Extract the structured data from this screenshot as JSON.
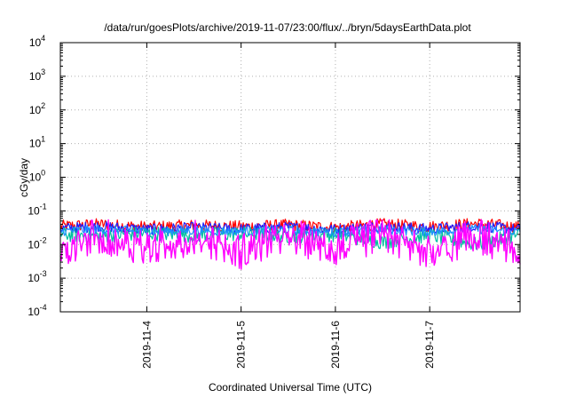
{
  "chart_data": {
    "type": "line",
    "title": "/data/run/goesPlots/archive/2019-11-07/23:00/flux/../bryn/5daysEarthData.plot",
    "xlabel": "Coordinated Universal Time (UTC)",
    "ylabel": "cGy/day",
    "y_scale": "log",
    "ylim": [
      0.0001,
      10000
    ],
    "xlim": [
      "2019-11-03 02:00",
      "2019-11-07 23:00"
    ],
    "x_ticks": [
      "2019-11-4",
      "2019-11-5",
      "2019-11-6",
      "2019-11-7"
    ],
    "y_ticks": [
      {
        "base": "10",
        "exp": "-4"
      },
      {
        "base": "10",
        "exp": "-3"
      },
      {
        "base": "10",
        "exp": "-2"
      },
      {
        "base": "10",
        "exp": "-1"
      },
      {
        "base": "10",
        "exp": "0"
      },
      {
        "base": "10",
        "exp": "1"
      },
      {
        "base": "10",
        "exp": "2"
      },
      {
        "base": "10",
        "exp": "3"
      },
      {
        "base": "10",
        "exp": "4"
      }
    ],
    "grid": true,
    "series": [
      {
        "color": "#ff0000",
        "x": [
          "2019-11-03 02:00",
          "2019-11-03 12:00",
          "2019-11-04 00:00",
          "2019-11-04 12:00",
          "2019-11-05 00:00",
          "2019-11-05 12:00",
          "2019-11-06 00:00",
          "2019-11-06 12:00",
          "2019-11-07 00:00",
          "2019-11-07 12:00",
          "2019-11-07 23:00"
        ],
        "values": [
          0.035,
          0.04,
          0.033,
          0.037,
          0.034,
          0.038,
          0.032,
          0.04,
          0.034,
          0.042,
          0.033
        ]
      },
      {
        "color": "#2020ff",
        "x": [
          "2019-11-03 02:00",
          "2019-11-03 12:00",
          "2019-11-04 00:00",
          "2019-11-04 12:00",
          "2019-11-05 00:00",
          "2019-11-05 12:00",
          "2019-11-06 00:00",
          "2019-11-06 12:00",
          "2019-11-07 00:00",
          "2019-11-07 12:00",
          "2019-11-07 23:00"
        ],
        "values": [
          0.03,
          0.035,
          0.028,
          0.032,
          0.029,
          0.033,
          0.028,
          0.035,
          0.029,
          0.036,
          0.028
        ]
      },
      {
        "color": "#00bfa0",
        "x": [
          "2019-11-03 02:00",
          "2019-11-03 12:00",
          "2019-11-04 00:00",
          "2019-11-04 12:00",
          "2019-11-05 00:00",
          "2019-11-05 12:00",
          "2019-11-06 00:00",
          "2019-11-06 12:00",
          "2019-11-07 00:00",
          "2019-11-07 12:00",
          "2019-11-07 23:00"
        ],
        "values": [
          0.02,
          0.018,
          0.022,
          0.019,
          0.021,
          0.018,
          0.02,
          0.012,
          0.019,
          0.01,
          0.02
        ]
      },
      {
        "color": "#1e90ff",
        "x": [
          "2019-11-03 02:00",
          "2019-11-03 12:00",
          "2019-11-04 00:00",
          "2019-11-04 12:00",
          "2019-11-05 00:00",
          "2019-11-05 12:00",
          "2019-11-06 00:00",
          "2019-11-06 12:00",
          "2019-11-07 00:00",
          "2019-11-07 12:00",
          "2019-11-07 23:00"
        ],
        "values": [
          0.025,
          0.028,
          0.024,
          0.026,
          0.025,
          0.027,
          0.023,
          0.028,
          0.024,
          0.029,
          0.024
        ]
      },
      {
        "color": "#ff00ff",
        "x": [
          "2019-11-03 02:00",
          "2019-11-03 12:00",
          "2019-11-04 00:00",
          "2019-11-04 12:00",
          "2019-11-05 00:00",
          "2019-11-05 12:00",
          "2019-11-06 00:00",
          "2019-11-06 12:00",
          "2019-11-07 00:00",
          "2019-11-07 12:00",
          "2019-11-07 23:00"
        ],
        "values": [
          0.005,
          0.012,
          0.005,
          0.011,
          0.004,
          0.012,
          0.005,
          0.013,
          0.004,
          0.012,
          0.004
        ]
      }
    ]
  }
}
